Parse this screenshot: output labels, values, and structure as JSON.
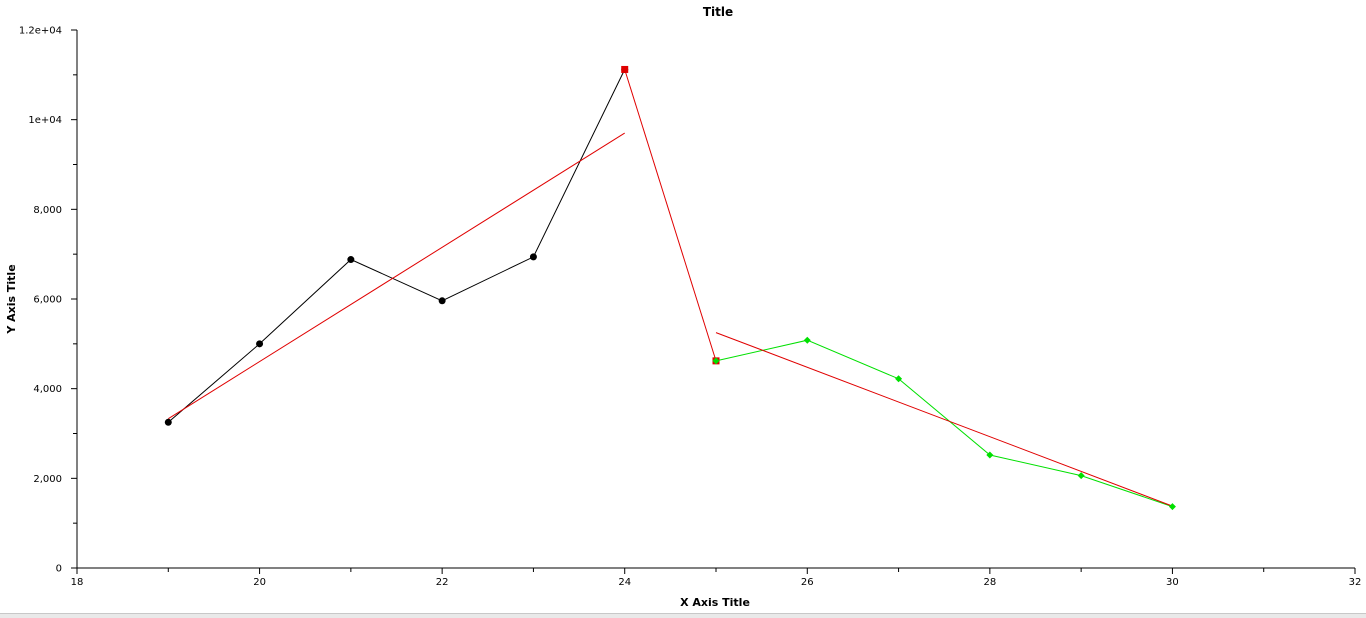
{
  "chart_data": {
    "type": "line",
    "title": "Title",
    "xlabel": "X Axis Title",
    "ylabel": "Y Axis Title",
    "xlim": [
      18,
      32
    ],
    "ylim": [
      0,
      12000
    ],
    "x_ticks": [
      18,
      20,
      22,
      24,
      26,
      28,
      30,
      32
    ],
    "x_tick_labels": [
      "18",
      "20",
      "22",
      "24",
      "26",
      "28",
      "30",
      "32"
    ],
    "y_ticks": [
      0,
      2000,
      4000,
      6000,
      8000,
      10000,
      12000
    ],
    "y_tick_labels": [
      "0",
      "2,000",
      "4,000",
      "6,000",
      "8,000",
      "1e+04",
      "1.2e+04"
    ],
    "grid": false,
    "series": [
      {
        "color": "#000000",
        "marker": "circle",
        "points": [
          [
            19,
            3250
          ],
          [
            20,
            5000
          ],
          [
            21,
            6880
          ],
          [
            22,
            5960
          ],
          [
            23,
            6940
          ],
          [
            24,
            11120
          ]
        ]
      },
      {
        "color": "#e00000",
        "marker": "square",
        "points": [
          [
            24,
            11120
          ],
          [
            25,
            4620
          ]
        ]
      },
      {
        "color": "#00e000",
        "marker": "diamond",
        "points": [
          [
            25,
            4620
          ],
          [
            26,
            5080
          ],
          [
            27,
            4220
          ],
          [
            28,
            2520
          ],
          [
            29,
            2060
          ],
          [
            30,
            1370
          ]
        ]
      },
      {
        "color": "#e00000",
        "marker": "none",
        "points": [
          [
            19,
            3330
          ],
          [
            24,
            9700
          ]
        ]
      },
      {
        "color": "#e00000",
        "marker": "none",
        "points": [
          [
            25,
            5250
          ],
          [
            30,
            1380
          ]
        ]
      }
    ]
  }
}
